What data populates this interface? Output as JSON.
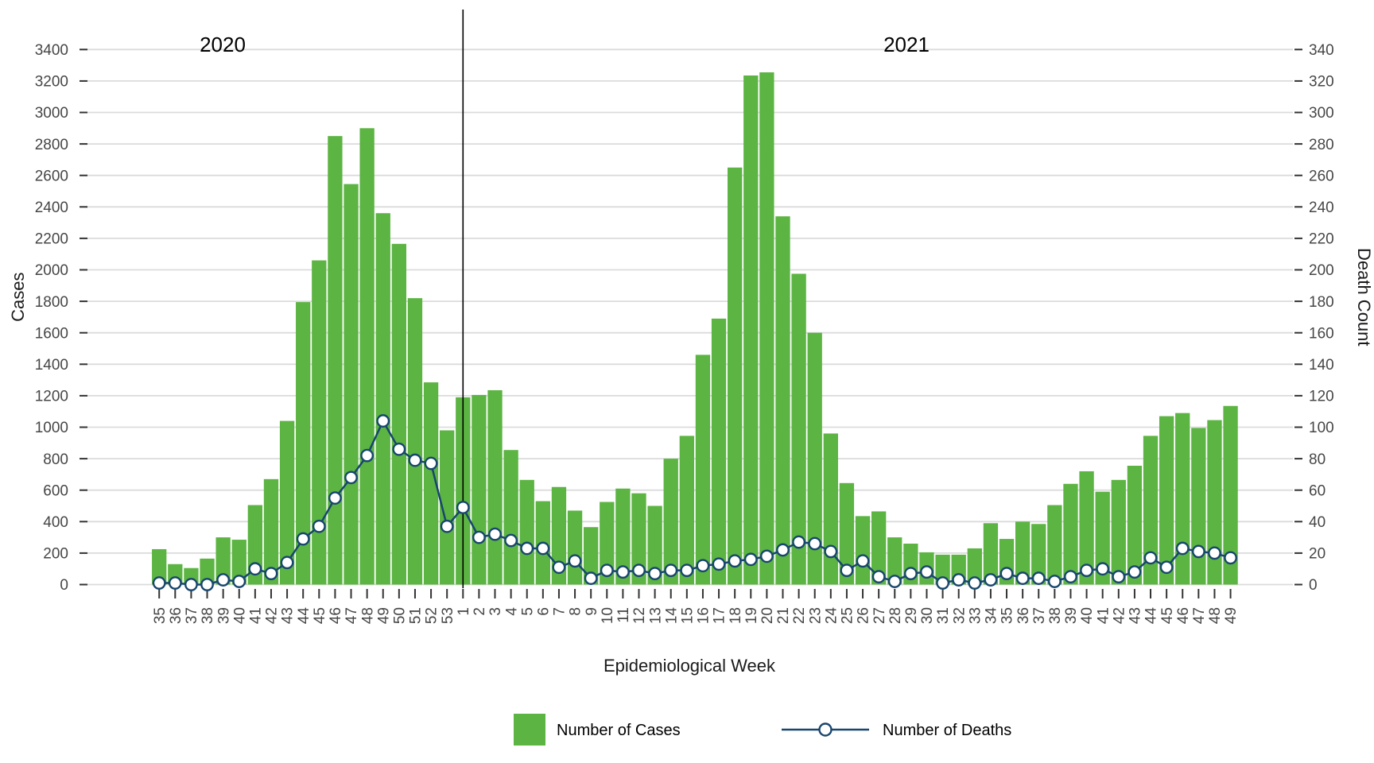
{
  "chart_data": {
    "type": "bar",
    "x_categories": [
      "35",
      "36",
      "37",
      "38",
      "39",
      "40",
      "41",
      "42",
      "43",
      "44",
      "45",
      "46",
      "47",
      "48",
      "49",
      "50",
      "51",
      "52",
      "53",
      "1",
      "2",
      "3",
      "4",
      "5",
      "6",
      "7",
      "8",
      "9",
      "10",
      "11",
      "12",
      "13",
      "14",
      "15",
      "16",
      "17",
      "18",
      "19",
      "20",
      "21",
      "22",
      "23",
      "24",
      "25",
      "26",
      "27",
      "28",
      "29",
      "30",
      "31",
      "32",
      "33",
      "34",
      "35",
      "36",
      "37",
      "38",
      "39",
      "40",
      "41",
      "42",
      "43",
      "44",
      "45",
      "46",
      "47",
      "48",
      "49"
    ],
    "year_groups": [
      {
        "label": "2020",
        "weeks": 19
      },
      {
        "label": "2021",
        "weeks": 49
      }
    ],
    "year_separator_index": 19,
    "series": [
      {
        "name": "Number of Cases",
        "type": "bar",
        "axis": "left",
        "color": "#5CB442",
        "values": [
          225,
          130,
          105,
          165,
          300,
          285,
          505,
          670,
          1040,
          1795,
          2060,
          2850,
          2545,
          2900,
          2360,
          2165,
          1820,
          1285,
          980,
          1190,
          1205,
          1235,
          855,
          665,
          530,
          620,
          470,
          365,
          525,
          610,
          580,
          500,
          800,
          945,
          1460,
          1690,
          2650,
          3235,
          3255,
          2340,
          1975,
          1600,
          960,
          645,
          435,
          465,
          300,
          260,
          205,
          190,
          190,
          230,
          390,
          290,
          400,
          385,
          505,
          640,
          720,
          590,
          665,
          755,
          945,
          1070,
          1090,
          995,
          1045,
          1135
        ]
      },
      {
        "name": "Number of Deaths",
        "type": "line",
        "axis": "right",
        "color": "#17466E",
        "marker_fill": "#FFFFFF",
        "values": [
          1,
          1,
          0,
          0,
          3,
          2,
          10,
          7,
          14,
          29,
          37,
          55,
          68,
          82,
          104,
          86,
          79,
          77,
          37,
          49,
          30,
          32,
          28,
          23,
          23,
          11,
          15,
          4,
          9,
          8,
          9,
          7,
          9,
          9,
          12,
          13,
          15,
          16,
          18,
          22,
          27,
          26,
          21,
          9,
          15,
          5,
          2,
          7,
          8,
          1,
          3,
          1,
          3,
          7,
          4,
          4,
          2,
          5,
          9,
          10,
          5,
          8,
          17,
          11,
          23,
          21,
          20,
          17
        ]
      }
    ],
    "xlabel": "Epidemiological Week",
    "left_axis": {
      "label": "Cases",
      "min": 0,
      "max": 3400,
      "step": 200
    },
    "right_axis": {
      "label": "Death Count",
      "min": 0,
      "max": 340,
      "step": 20
    },
    "grid": true,
    "gridline_color": "#DBDBDB",
    "separator_color": "#000000",
    "legend": [
      "Number of Cases",
      "Number of Deaths"
    ],
    "legend_position": "bottom"
  }
}
